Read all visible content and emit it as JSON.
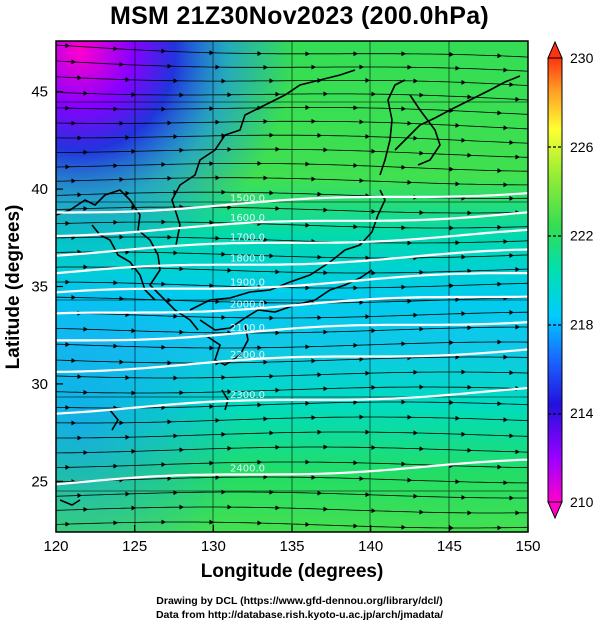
{
  "title": "MSM 21Z30Nov2023 (200.0hPa)",
  "x_axis": {
    "label": "Longitude (degrees)",
    "range": [
      120,
      150
    ],
    "ticks": [
      120,
      125,
      130,
      135,
      140,
      145,
      150
    ]
  },
  "y_axis": {
    "label": "Latitude  (degrees)",
    "range": [
      22.4,
      47.6
    ],
    "ticks": [
      25,
      30,
      35,
      40,
      45
    ]
  },
  "colorbar": {
    "range": [
      210,
      230
    ],
    "tick_labels": [
      "230",
      "226",
      "222",
      "218",
      "214",
      "210"
    ],
    "colors": [
      "#ff00cc",
      "#9900ff",
      "#2211dd",
      "#1a66ff",
      "#00ccff",
      "#00e0b0",
      "#33dd55",
      "#99ee33",
      "#ffff33",
      "#ff9922",
      "#ff3311"
    ]
  },
  "contour_lines": [
    {
      "label": "1500.0",
      "lat": 38.8
    },
    {
      "label": "1600.0",
      "lat": 37.7
    },
    {
      "label": "1700.0",
      "lat": 36.7
    },
    {
      "label": "1800.0",
      "lat": 35.7
    },
    {
      "label": "1900.0",
      "lat": 34.6
    },
    {
      "label": "2000.0",
      "lat": 33.5
    },
    {
      "label": "2100.0",
      "lat": 32.2
    },
    {
      "label": "2200.0",
      "lat": 30.7
    },
    {
      "label": "2300.0",
      "lat": 28.6
    },
    {
      "label": "2400.0",
      "lat": 24.9
    }
  ],
  "credits": {
    "line1": "Drawing by DCL (https://www.gfd-dennou.org/library/dcl/)",
    "line2": "Data from http://database.rish.kyoto-u.ac.jp/arch/jmadata/"
  }
}
